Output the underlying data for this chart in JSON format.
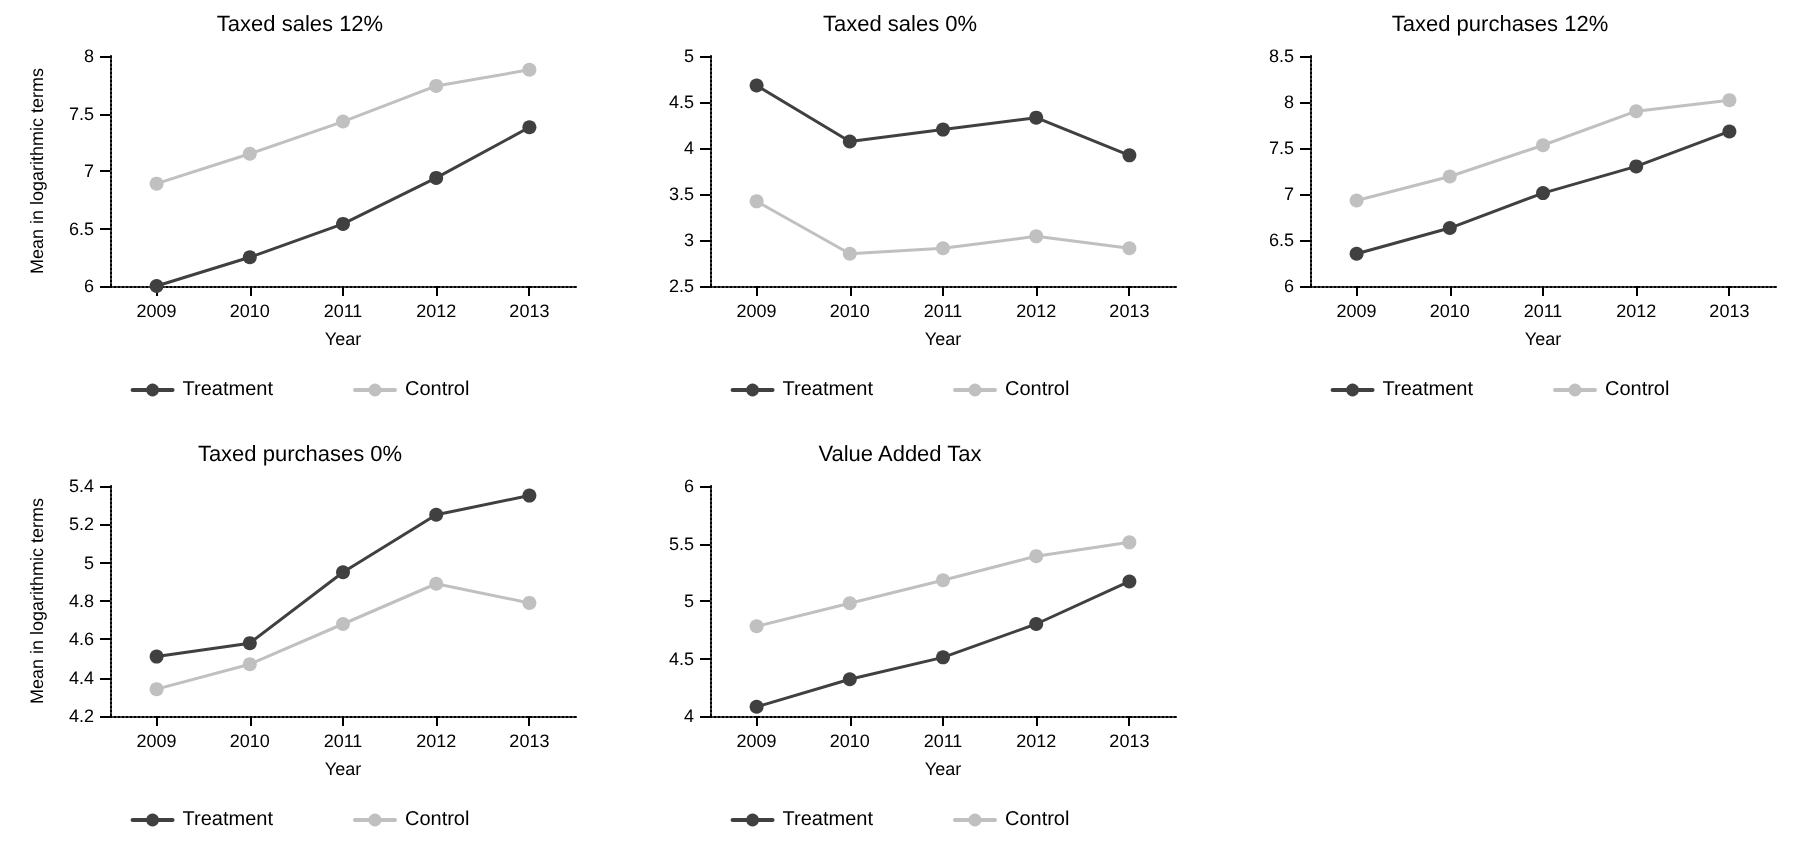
{
  "chart_data": [
    {
      "type": "line",
      "title": "Taxed sales 12%",
      "xlabel": "Year",
      "ylabel": "Mean in logarithmic terms",
      "categories": [
        "2009",
        "2010",
        "2011",
        "2012",
        "2013"
      ],
      "ylim": [
        6,
        8
      ],
      "yticks": [
        6,
        6.5,
        7,
        7.5,
        8
      ],
      "grid": false,
      "legend": "bottom",
      "marker": "circle",
      "line_style": "solid",
      "series": [
        {
          "name": "Treatment",
          "color": "#404040",
          "values": [
            6,
            6.25,
            6.54,
            6.94,
            7.38
          ]
        },
        {
          "name": "Control",
          "color": "#c0c0c0",
          "values": [
            6.89,
            7.15,
            7.43,
            7.74,
            7.88
          ]
        }
      ]
    },
    {
      "type": "line",
      "title": "Taxed sales 0%",
      "xlabel": "Year",
      "categories": [
        "2009",
        "2010",
        "2011",
        "2012",
        "2013"
      ],
      "ylim": [
        2.5,
        5
      ],
      "yticks": [
        2.5,
        3,
        3.5,
        4,
        4.5,
        5
      ],
      "grid": false,
      "legend": "bottom",
      "marker": "circle",
      "line_style": "solid",
      "series": [
        {
          "name": "Treatment",
          "color": "#404040",
          "values": [
            4.68,
            4.07,
            4.2,
            4.33,
            3.92
          ]
        },
        {
          "name": "Control",
          "color": "#c0c0c0",
          "values": [
            3.42,
            2.85,
            2.91,
            3.04,
            2.91
          ]
        }
      ]
    },
    {
      "type": "line",
      "title": "Taxed purchases 12%",
      "xlabel": "Year",
      "categories": [
        "2009",
        "2010",
        "2011",
        "2012",
        "2013"
      ],
      "ylim": [
        6,
        8.5
      ],
      "yticks": [
        6,
        6.5,
        7,
        7.5,
        8,
        8.5
      ],
      "grid": false,
      "legend": "bottom",
      "marker": "circle",
      "line_style": "solid",
      "series": [
        {
          "name": "Treatment",
          "color": "#404040",
          "values": [
            6.35,
            6.63,
            7.01,
            7.3,
            7.68
          ]
        },
        {
          "name": "Control",
          "color": "#c0c0c0",
          "values": [
            6.93,
            7.19,
            7.53,
            7.9,
            8.02
          ]
        }
      ]
    },
    {
      "type": "line",
      "title": "Taxed purchases 0%",
      "xlabel": "Year",
      "ylabel": "Mean in logarithmic terms",
      "categories": [
        "2009",
        "2010",
        "2011",
        "2012",
        "2013"
      ],
      "ylim": [
        4.2,
        5.4
      ],
      "yticks": [
        4.2,
        4.4,
        4.6,
        4.8,
        5,
        5.2,
        5.4
      ],
      "grid": false,
      "legend": "bottom",
      "marker": "circle",
      "line_style": "solid",
      "series": [
        {
          "name": "Treatment",
          "color": "#404040",
          "values": [
            4.51,
            4.58,
            4.95,
            5.25,
            5.35
          ]
        },
        {
          "name": "Control",
          "color": "#c0c0c0",
          "values": [
            4.34,
            4.47,
            4.68,
            4.89,
            4.79
          ]
        }
      ]
    },
    {
      "type": "line",
      "title": "Value Added Tax",
      "xlabel": "Year",
      "categories": [
        "2009",
        "2010",
        "2011",
        "2012",
        "2013"
      ],
      "ylim": [
        4,
        6
      ],
      "yticks": [
        4,
        4.5,
        5,
        5.5,
        6
      ],
      "grid": false,
      "legend": "bottom",
      "marker": "circle",
      "line_style": "solid",
      "series": [
        {
          "name": "Treatment",
          "color": "#404040",
          "values": [
            4.08,
            4.32,
            4.51,
            4.8,
            5.17
          ]
        },
        {
          "name": "Control",
          "color": "#c0c0c0",
          "values": [
            4.78,
            4.98,
            5.18,
            5.39,
            5.51
          ]
        }
      ]
    }
  ]
}
